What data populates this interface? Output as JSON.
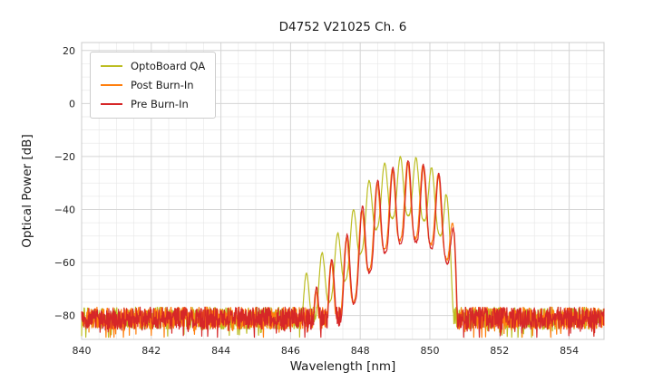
{
  "chart_data": {
    "type": "line",
    "title": "D4752 V21025 Ch. 6",
    "xlabel": "Wavelength [nm]",
    "ylabel": "Optical Power [dB]",
    "xlim": [
      840,
      855
    ],
    "ylim": [
      -89,
      23
    ],
    "xticks": [
      840,
      842,
      844,
      846,
      848,
      850,
      852,
      854
    ],
    "yticks": [
      20,
      0,
      -20,
      -40,
      -60,
      -80
    ],
    "x_step": 0.01,
    "grid": {
      "minor_x": 0.5,
      "minor_y": 5,
      "major_x": 2,
      "major_y": 20,
      "minor_color": "#e9e9e9",
      "major_color": "#d6d6d6",
      "border_color": "#cccccc"
    },
    "legend_position": "upper left",
    "tick_label_color": "#262626",
    "series": [
      {
        "name": "OptoBoard QA",
        "color": "#bcbd22",
        "seed": 12345,
        "noise": {
          "mean": -81,
          "amp": 4.2,
          "spike_prob": 0.1,
          "spike_extra": 5
        },
        "envelope": [
          [
            846.0,
            -79
          ],
          [
            846.35,
            -66
          ],
          [
            846.8,
            -58
          ],
          [
            847.3,
            -50
          ],
          [
            847.8,
            -40
          ],
          [
            848.2,
            -30
          ],
          [
            848.6,
            -23
          ],
          [
            849.15,
            -20
          ],
          [
            849.6,
            -20.5
          ],
          [
            849.95,
            -23
          ],
          [
            850.2,
            -26
          ],
          [
            850.45,
            -31
          ],
          [
            850.6,
            -46
          ],
          [
            850.75,
            -72
          ],
          [
            850.85,
            -84
          ]
        ],
        "mode_spacing": 0.45,
        "mode_phase": 849.15,
        "mode_depth": 22,
        "mode_sharpness": 1.5,
        "jitter": 0.6
      },
      {
        "name": "Post Burn-In",
        "color": "#ff7f0e",
        "seed": 67890,
        "noise": {
          "mean": -81,
          "amp": 4.2,
          "spike_prob": 0.1,
          "spike_extra": 5
        },
        "envelope": [
          [
            846.45,
            -79
          ],
          [
            846.85,
            -67
          ],
          [
            847.3,
            -57
          ],
          [
            847.8,
            -47
          ],
          [
            848.2,
            -36
          ],
          [
            848.6,
            -27.5
          ],
          [
            849.0,
            -24.5
          ],
          [
            849.36,
            -22
          ],
          [
            849.8,
            -23.5
          ],
          [
            850.1,
            -25.5
          ],
          [
            850.4,
            -28.5
          ],
          [
            850.58,
            -34
          ],
          [
            850.72,
            -53
          ],
          [
            850.82,
            -73
          ],
          [
            850.9,
            -84
          ]
        ],
        "mode_spacing": 0.44,
        "mode_phase": 849.36,
        "mode_depth": 28,
        "mode_sharpness": 1.5,
        "jitter": 1.0
      },
      {
        "name": "Pre Burn-In",
        "color": "#d62728",
        "seed": 24680,
        "noise": {
          "mean": -81,
          "amp": 4.2,
          "spike_prob": 0.1,
          "spike_extra": 5
        },
        "envelope": [
          [
            846.45,
            -79
          ],
          [
            846.85,
            -66
          ],
          [
            847.3,
            -56
          ],
          [
            847.8,
            -46
          ],
          [
            848.2,
            -35
          ],
          [
            848.6,
            -27
          ],
          [
            849.0,
            -24
          ],
          [
            849.38,
            -21.5
          ],
          [
            849.8,
            -23
          ],
          [
            850.1,
            -25
          ],
          [
            850.4,
            -28
          ],
          [
            850.58,
            -33
          ],
          [
            850.72,
            -52
          ],
          [
            850.82,
            -72
          ],
          [
            850.92,
            -84
          ]
        ],
        "mode_spacing": 0.44,
        "mode_phase": 849.38,
        "mode_depth": 30,
        "mode_sharpness": 1.5,
        "jitter": 1.0
      }
    ]
  }
}
